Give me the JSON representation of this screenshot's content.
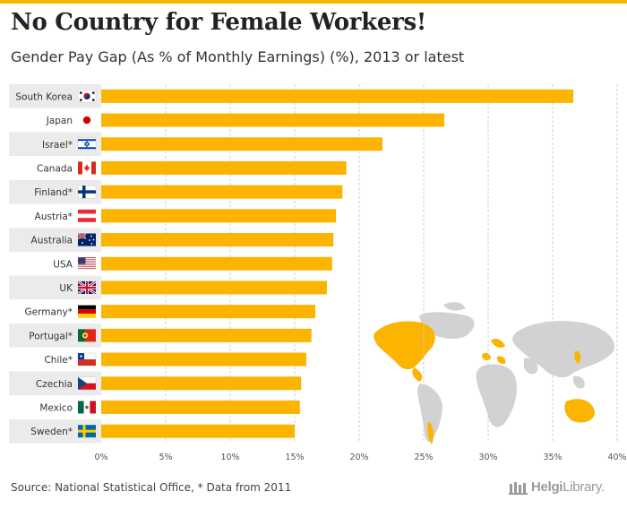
{
  "title": "No Country for Female Workers!",
  "subtitle": "Gender Pay Gap (As % of Monthly Earnings) (%), 2013 or latest",
  "source": "Source: National Statistical Office, * Data from 2011",
  "logo": {
    "part1": "Helgi",
    "part2": "Library."
  },
  "colors": {
    "bar": "#fbb400",
    "band": "#ebebeb",
    "grid": "#cfcfcf",
    "map_gray": "#d2d2d2",
    "map_orange": "#fbb400",
    "accent": "#f5b800"
  },
  "chart_data": {
    "type": "bar",
    "orientation": "horizontal",
    "title": "No Country for Female Workers!",
    "subtitle": "Gender Pay Gap (As % of Monthly Earnings) (%), 2013 or latest",
    "categories": [
      "South Korea",
      "Japan",
      "Israel*",
      "Canada",
      "Finland*",
      "Austria*",
      "Australia",
      "USA",
      "UK",
      "Germany*",
      "Portugal*",
      "Chile*",
      "Czechia",
      "Mexico",
      "Sweden*"
    ],
    "flags": [
      "kr",
      "jp",
      "il",
      "ca",
      "fi",
      "at",
      "au",
      "us",
      "gb",
      "de",
      "pt",
      "cl",
      "cz",
      "mx",
      "se"
    ],
    "values": [
      36.6,
      26.6,
      21.8,
      19.0,
      18.7,
      18.2,
      18.0,
      17.9,
      17.5,
      16.6,
      16.3,
      15.9,
      15.5,
      15.4,
      15.0
    ],
    "xlim": [
      0,
      40
    ],
    "xticks": [
      0,
      5,
      10,
      15,
      20,
      25,
      30,
      35,
      40
    ],
    "xtick_labels": [
      "0%",
      "5%",
      "10%",
      "15%",
      "20%",
      "25%",
      "30%",
      "35%",
      "40%"
    ],
    "xlabel": "",
    "ylabel": "",
    "grid": true
  }
}
